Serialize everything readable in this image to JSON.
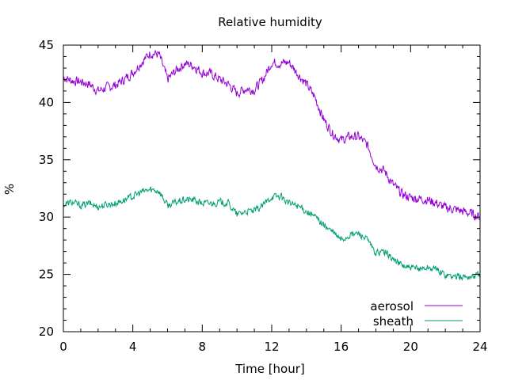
{
  "chart_data": {
    "type": "line",
    "title": "Relative humidity",
    "xlabel": "Time [hour]",
    "ylabel": "%",
    "xlim": [
      0,
      24
    ],
    "ylim": [
      20,
      45
    ],
    "xticks": [
      0,
      4,
      8,
      12,
      16,
      20,
      24
    ],
    "yticks": [
      20,
      25,
      30,
      35,
      40,
      45
    ],
    "grid": false,
    "legend_position": "bottom-right",
    "x": [
      0,
      0.5,
      1,
      1.5,
      2,
      2.5,
      3,
      3.5,
      4,
      4.5,
      5,
      5.5,
      6,
      6.5,
      7,
      7.5,
      8,
      8.5,
      9,
      9.5,
      10,
      10.5,
      11,
      11.5,
      12,
      12.5,
      13,
      13.5,
      14,
      14.5,
      15,
      15.5,
      16,
      16.5,
      17,
      17.5,
      18,
      18.5,
      19,
      19.5,
      20,
      20.5,
      21,
      21.5,
      22,
      22.5,
      23,
      23.5,
      24
    ],
    "series": [
      {
        "name": "aerosol",
        "color": "#9400d3",
        "values": [
          42.2,
          41.9,
          41.8,
          41.6,
          41.0,
          41.3,
          41.5,
          42.0,
          42.6,
          43.5,
          44.3,
          44.2,
          42.0,
          42.8,
          43.4,
          43.2,
          42.6,
          42.5,
          42.0,
          41.6,
          40.8,
          41.2,
          41.1,
          42.0,
          43.5,
          43.4,
          43.5,
          42.5,
          41.6,
          40.4,
          38.5,
          37.3,
          36.7,
          37.0,
          37.0,
          36.3,
          34.5,
          34.0,
          32.8,
          32.0,
          31.7,
          31.6,
          31.5,
          31.2,
          30.8,
          30.7,
          30.5,
          30.3,
          30.0
        ]
      },
      {
        "name": "sheath",
        "color": "#009e73",
        "values": [
          31.1,
          31.3,
          31.0,
          31.2,
          30.9,
          31.1,
          31.2,
          31.5,
          31.8,
          32.2,
          32.4,
          32.3,
          31.0,
          31.3,
          31.5,
          31.5,
          31.2,
          31.2,
          31.3,
          31.2,
          30.2,
          30.5,
          30.5,
          31.0,
          31.8,
          31.8,
          31.2,
          31.0,
          30.5,
          30.0,
          29.3,
          28.7,
          28.0,
          28.4,
          28.6,
          28.0,
          26.8,
          27.0,
          26.3,
          25.8,
          25.5,
          25.5,
          25.6,
          25.4,
          25.0,
          24.8,
          24.8,
          24.8,
          25.0
        ]
      }
    ]
  }
}
